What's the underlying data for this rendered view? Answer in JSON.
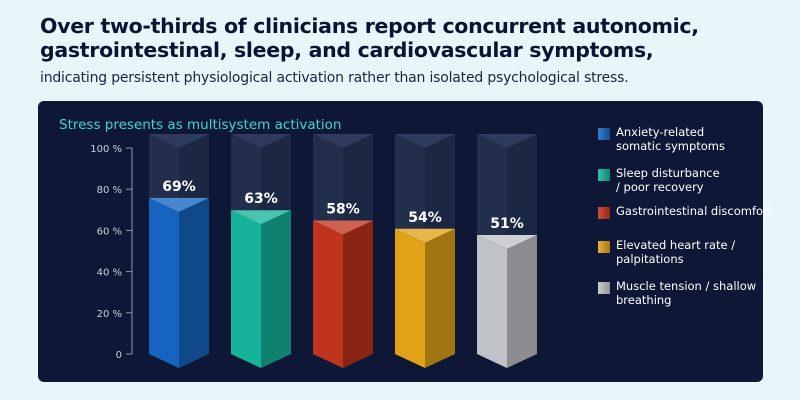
{
  "headline": "Over two-thirds of clinicians report concurrent autonomic, gastrointestinal, sleep, and cardiovascular symptoms,",
  "subhead": "indicating persistent physiological activation rather than isolated psychological stress.",
  "chart_data": {
    "type": "bar",
    "title": "Stress presents as multisystem activation",
    "categories": [
      "Anxiety-related somatic symptoms",
      "Sleep disturbance / poor recovery",
      "Gastrointestinal discomfort",
      "Elevated heart rate / palpitations",
      "Muscle tension / shallow breathing"
    ],
    "values": [
      69,
      63,
      58,
      54,
      51
    ],
    "data_labels": [
      "69%",
      "63%",
      "58%",
      "54%",
      "51%"
    ],
    "colors": [
      "#1565c0",
      "#14b39a",
      "#c0341e",
      "#e0a318",
      "#bfc3c8"
    ],
    "ylim": [
      0,
      100
    ],
    "yticks": [
      0,
      20,
      40,
      60,
      80,
      100
    ],
    "ytick_labels": [
      "0",
      "20 %",
      "40 %",
      "60 %",
      "80 %",
      "100 %"
    ],
    "legend_position": "right",
    "legend": [
      "Anxiety-related somatic symptoms",
      "Sleep disturbance / poor recovery",
      "Gastrointestinal discomfort",
      "Elevated heart rate / palpitations",
      "Muscle tension / shallow breathing"
    ],
    "grid": false
  }
}
